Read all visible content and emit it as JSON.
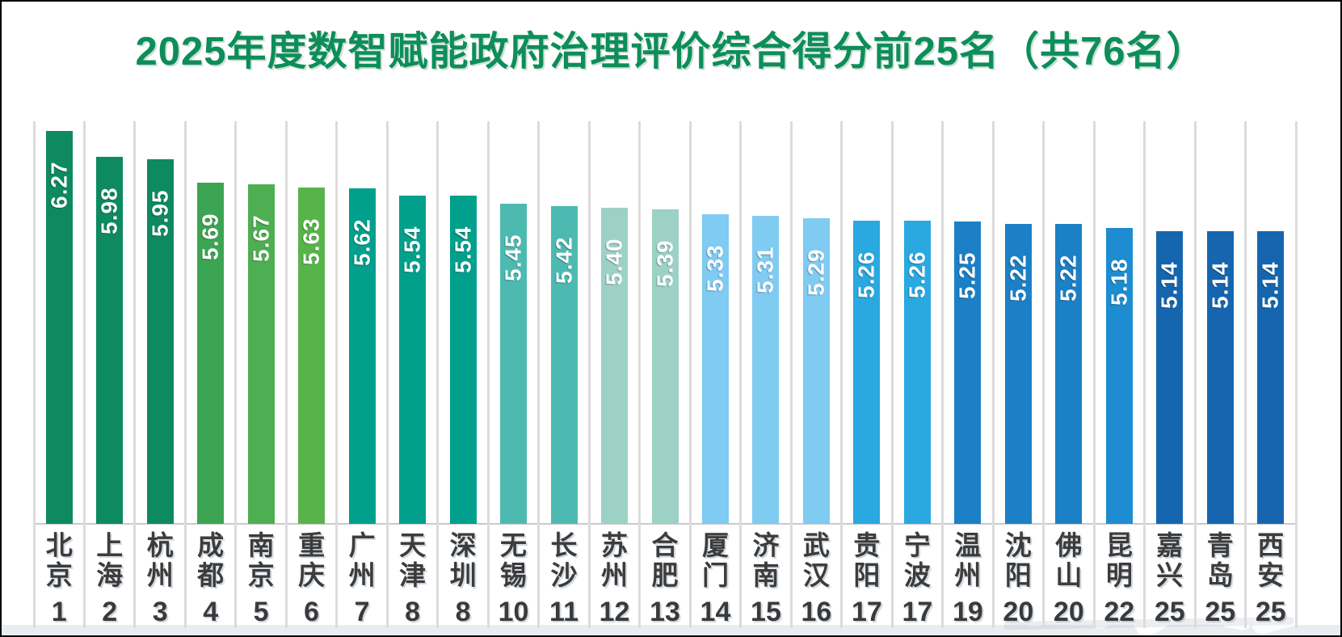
{
  "title": "2025年度数智赋能政府治理评价综合得分前25名（共76名）",
  "colors": {
    "title_green": "#0D8E59",
    "separator_gray": "#DCDCDC",
    "axis_gray": "#C9C9C9",
    "label_dark_gray": "#3C3C3C",
    "footer_band": "#E9EDF2",
    "value_label_white": "#FFFFFF"
  },
  "chart_data": {
    "type": "bar",
    "title": "2025年度数智赋能政府治理评价综合得分前25名（共76名）",
    "categories": [
      "北京",
      "上海",
      "杭州",
      "成都",
      "南京",
      "重庆",
      "广州",
      "天津",
      "深圳",
      "无锡",
      "长沙",
      "苏州",
      "合肥",
      "厦门",
      "济南",
      "武汉",
      "贵阳",
      "宁波",
      "温州",
      "沈阳",
      "佛山",
      "昆明",
      "嘉兴",
      "青岛",
      "西安"
    ],
    "values": [
      6.27,
      5.98,
      5.95,
      5.69,
      5.67,
      5.63,
      5.62,
      5.54,
      5.54,
      5.45,
      5.42,
      5.4,
      5.39,
      5.33,
      5.31,
      5.29,
      5.26,
      5.26,
      5.25,
      5.22,
      5.22,
      5.18,
      5.14,
      5.14,
      5.14
    ],
    "value_labels": [
      "6.27",
      "5.98",
      "5.95",
      "5.69",
      "5.67",
      "5.63",
      "5.62",
      "5.54",
      "5.54",
      "5.45",
      "5.42",
      "5.40",
      "5.39",
      "5.33",
      "5.31",
      "5.29",
      "5.26",
      "5.26",
      "5.25",
      "5.22",
      "5.22",
      "5.18",
      "5.14",
      "5.14",
      "5.14"
    ],
    "ranks": [
      "1",
      "2",
      "3",
      "4",
      "5",
      "6",
      "7",
      "8",
      "8",
      "10",
      "11",
      "12",
      "13",
      "14",
      "15",
      "16",
      "17",
      "17",
      "19",
      "20",
      "20",
      "22",
      "25",
      "25",
      "25"
    ],
    "bar_colors": [
      "#0E8A60",
      "#0E8A60",
      "#0E8A60",
      "#3CA553",
      "#4EAE52",
      "#58B44A",
      "#00A08C",
      "#00A08C",
      "#00A08C",
      "#4DBAB2",
      "#4DBAB2",
      "#9DD1C5",
      "#9DD1C5",
      "#7FCBF2",
      "#7FCBF2",
      "#7FCBF2",
      "#2AA8E0",
      "#2AA8E0",
      "#1C80C7",
      "#1C80C7",
      "#1C80C7",
      "#1E8CD0",
      "#1566AE",
      "#1566AE",
      "#1566AE"
    ],
    "xlabel": "",
    "ylabel": "",
    "value_label_rotation": "vertical-bottom-to-top",
    "legend": "none",
    "grid": "vertical-column-separators-only"
  }
}
